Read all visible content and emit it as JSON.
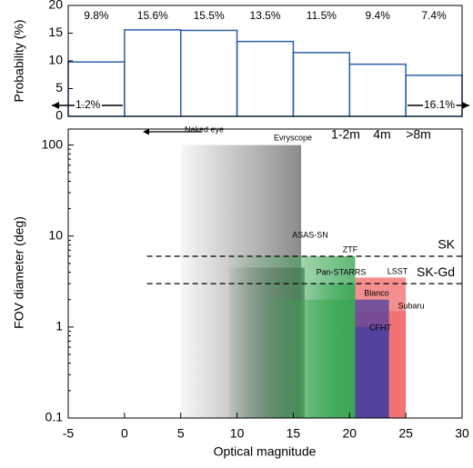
{
  "chart_data": [
    {
      "type": "histogram",
      "ylabel": "Probability (%)",
      "color": "#2f5fa8",
      "bins": [
        -5,
        0,
        5,
        10,
        15,
        20,
        25,
        30
      ],
      "values": [
        9.8,
        15.6,
        15.5,
        13.5,
        11.5,
        9.4,
        7.4
      ],
      "value_labels": [
        "9.8%",
        "15.6%",
        "15.5%",
        "13.5%",
        "11.5%",
        "9.4%",
        "7.4%"
      ],
      "tails": [
        {
          "value": 1.2,
          "label": "1.2%"
        },
        {
          "value": 16.1,
          "label": "16.1%"
        }
      ],
      "xlim": [
        -5,
        30
      ],
      "ylim": [
        0,
        20
      ],
      "yticks": [
        0,
        5,
        10,
        15,
        20
      ]
    },
    {
      "type": "range",
      "xlabel": "Optical magnitude",
      "ylabel": "FOV diameter (deg)",
      "log_y": true,
      "xlim": [
        -5,
        30
      ],
      "xticks": [
        -5,
        0,
        5,
        10,
        15,
        20,
        25,
        30
      ],
      "ylim": [
        0.1,
        150
      ],
      "yticks": [
        0.1,
        1,
        10,
        100
      ],
      "annotation": "Naked eye",
      "legend": [
        {
          "name": "1-2m",
          "color": "#3aa655"
        },
        {
          "name": "4m",
          "color": "#2f5fa8"
        },
        {
          "name": ">8m",
          "color": "#f03a3a"
        }
      ],
      "telescopes": [
        {
          "label": "Evryscope",
          "xmin": 5,
          "xmax": 15.7,
          "fov": 100,
          "color": "#6e6e6e",
          "fade": true
        },
        {
          "label": "ASAS-SN",
          "xmin": 9.3,
          "xmax": 16,
          "fov": 4.5,
          "color": "#555555",
          "fade": true
        },
        {
          "label": "ZTF",
          "xmin": 9.3,
          "xmax": 20.5,
          "fov": 6,
          "color": "#3aa655",
          "fade": true
        },
        {
          "label": "Pan-STARRS",
          "xmin": 15.7,
          "xmax": 20.5,
          "fov": 3,
          "color": "#3aa655",
          "fade": true
        },
        {
          "xmin": 12.3,
          "xmax": 20.5,
          "fov": 2,
          "color": "#3aa655",
          "fade": true
        },
        {
          "label": "LSST",
          "xmin": 20.5,
          "xmax": 25,
          "fov": 3.5,
          "color": "#f06a6a",
          "fade": false
        },
        {
          "label": "Subaru",
          "xmin": 20.5,
          "xmax": 25,
          "fov": 1.5,
          "color": "#f06a6a",
          "fade": false
        },
        {
          "label": "Blanco",
          "xmin": 20.5,
          "xmax": 23.5,
          "fov": 2,
          "color": "#4b3fa0",
          "fade": false
        },
        {
          "label": "CFHT",
          "xmin": 20.5,
          "xmax": 23.5,
          "fov": 1,
          "color": "#4b3fa0",
          "fade": false
        }
      ],
      "reference_lines": [
        {
          "label": "SK",
          "value": 6,
          "from": 2
        },
        {
          "label": "SK-Gd",
          "value": 3,
          "from": 2
        }
      ]
    }
  ]
}
